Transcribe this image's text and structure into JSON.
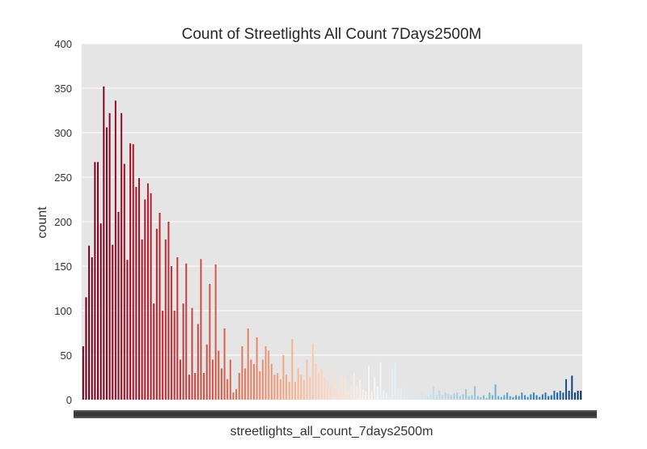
{
  "chart_data": {
    "type": "bar",
    "title": "Count of Streetlights All Count 7Days2500M",
    "xlabel": "streetlights_all_count_7days2500m",
    "ylabel": "count",
    "ylim": [
      0,
      400
    ],
    "yticks": [
      0,
      50,
      100,
      150,
      200,
      250,
      300,
      350,
      400
    ],
    "xtick_labels_legible": false,
    "grid": true,
    "legend": "none",
    "palette": {
      "start": "#67001f",
      "mid": "#f7f7f7",
      "end": "#053061"
    },
    "counts": [
      60,
      115,
      173,
      160,
      267,
      267,
      198,
      352,
      306,
      322,
      174,
      336,
      211,
      322,
      265,
      157,
      288,
      287,
      239,
      249,
      180,
      225,
      243,
      232,
      108,
      192,
      210,
      100,
      180,
      200,
      150,
      100,
      160,
      45,
      108,
      153,
      28,
      103,
      30,
      85,
      158,
      30,
      62,
      130,
      45,
      152,
      55,
      35,
      80,
      23,
      45,
      8,
      12,
      30,
      60,
      35,
      80,
      45,
      40,
      70,
      32,
      45,
      60,
      55,
      40,
      28,
      30,
      23,
      50,
      28,
      20,
      68,
      20,
      35,
      28,
      22,
      45,
      25,
      63,
      40,
      30,
      35,
      25,
      22,
      15,
      35,
      20,
      12,
      28,
      25,
      10,
      15,
      30,
      15,
      22,
      12,
      10,
      38,
      8,
      25,
      15,
      42,
      10,
      8,
      5,
      35,
      42,
      12,
      15,
      8,
      5,
      3,
      2,
      5,
      3,
      8,
      5,
      4,
      6,
      15,
      5,
      10,
      5,
      8,
      6,
      5,
      7,
      8,
      4,
      6,
      12,
      4,
      5,
      15,
      4,
      3,
      5,
      2,
      8,
      5,
      17,
      4,
      3,
      5,
      8,
      4,
      3,
      5,
      4,
      8,
      5,
      3,
      6,
      8,
      5,
      3,
      6,
      8,
      4,
      5,
      10,
      8,
      10,
      8,
      23,
      10,
      27,
      8,
      10,
      10
    ]
  }
}
